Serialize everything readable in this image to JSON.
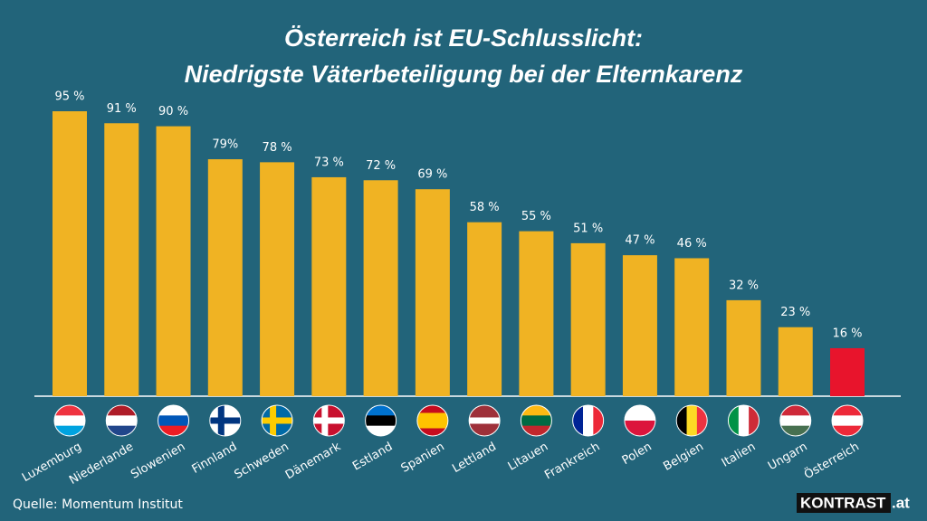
{
  "chart_data": {
    "type": "bar",
    "title": [
      "Österreich ist EU-Schlusslicht:",
      "Niedrigste Väterbeteiligung bei der Elternkarenz"
    ],
    "categories": [
      "Luxemburg",
      "Niederlande",
      "Slowenien",
      "Finnland",
      "Schweden",
      "Dänemark",
      "Estland",
      "Spanien",
      "Lettland",
      "Litauen",
      "Frankreich",
      "Polen",
      "Belgien",
      "Italien",
      "Ungarn",
      "Österreich"
    ],
    "values": [
      95,
      91,
      90,
      79,
      78,
      73,
      72,
      69,
      58,
      55,
      51,
      47,
      46,
      32,
      23,
      16
    ],
    "value_labels": [
      "95 %",
      "91 %",
      "90 %",
      "79%",
      "78 %",
      "73 %",
      "72 %",
      "69 %",
      "58 %",
      "55 %",
      "51 %",
      "47 %",
      "46 %",
      "32 %",
      "23 %",
      "16 %"
    ],
    "colors": [
      "#f0b323",
      "#f0b323",
      "#f0b323",
      "#f0b323",
      "#f0b323",
      "#f0b323",
      "#f0b323",
      "#f0b323",
      "#f0b323",
      "#f0b323",
      "#f0b323",
      "#f0b323",
      "#f0b323",
      "#f0b323",
      "#f0b323",
      "#e8142c"
    ],
    "source": "Quelle: Momentum Institut",
    "logo": {
      "name": "KONTRAST",
      "suffix": ".at"
    }
  }
}
